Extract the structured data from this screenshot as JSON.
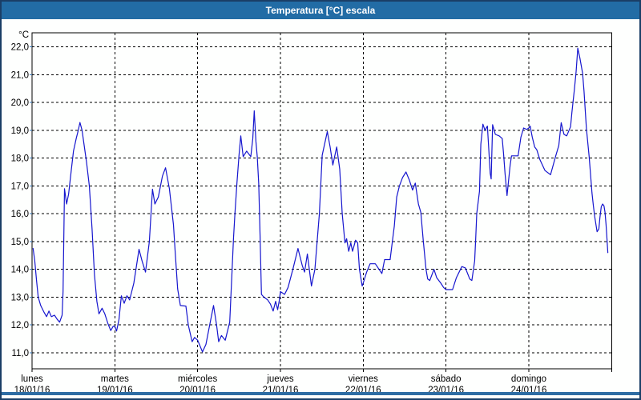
{
  "window": {
    "title": "Temperatura [°C] escala"
  },
  "colors": {
    "titlebar": "#226CA5",
    "frame": "#1A3E66",
    "bottom_strip": "#2E6DA4",
    "plot_background": "#FEFFFE",
    "grid": "#000000",
    "text": "#000000",
    "line": "#1616CE"
  },
  "chart_data": {
    "type": "line",
    "title": "Temperatura [°C] escala",
    "y_unit": "°C",
    "ylim": [
      10.4,
      22.5
    ],
    "grid": "dashed-black-both-axes",
    "legend": "none",
    "y_ticks": [
      {
        "value": 22,
        "label": "22,0"
      },
      {
        "value": 21,
        "label": "21,0"
      },
      {
        "value": 20,
        "label": "20,0"
      },
      {
        "value": 19,
        "label": "19,0"
      },
      {
        "value": 18,
        "label": "18,0"
      },
      {
        "value": 17,
        "label": "17,0"
      },
      {
        "value": 16,
        "label": "16,0"
      },
      {
        "value": 15,
        "label": "15,0"
      },
      {
        "value": 14,
        "label": "14,0"
      },
      {
        "value": 13,
        "label": "13,0"
      },
      {
        "value": 12,
        "label": "12,0"
      },
      {
        "value": 11,
        "label": "11,0"
      }
    ],
    "days": [
      {
        "name": "lunes",
        "date": "18/01/16"
      },
      {
        "name": "martes",
        "date": "19/01/16"
      },
      {
        "name": "miércoles",
        "date": "20/01/16"
      },
      {
        "name": "jueves",
        "date": "21/01/16"
      },
      {
        "name": "viernes",
        "date": "22/01/16"
      },
      {
        "name": "sábado",
        "date": "23/01/16"
      },
      {
        "name": "domingo",
        "date": "24/01/16"
      }
    ],
    "hours_per_day": 24,
    "x_range_hours": [
      0,
      168
    ],
    "series": [
      {
        "name": "Temperatura",
        "color": "#1616CE",
        "points": [
          [
            0.3,
            14.75
          ],
          [
            0.8,
            14.3
          ],
          [
            1.3,
            13.6
          ],
          [
            1.8,
            13.0
          ],
          [
            2.5,
            12.7
          ],
          [
            3.5,
            12.45
          ],
          [
            4.2,
            12.3
          ],
          [
            4.9,
            12.5
          ],
          [
            5.6,
            12.3
          ],
          [
            6.5,
            12.35
          ],
          [
            7.3,
            12.2
          ],
          [
            8.0,
            12.1
          ],
          [
            8.7,
            12.35
          ],
          [
            9.0,
            13.2
          ],
          [
            9.4,
            16.9
          ],
          [
            10.0,
            16.35
          ],
          [
            10.6,
            16.7
          ],
          [
            11.4,
            17.6
          ],
          [
            12.0,
            18.25
          ],
          [
            12.8,
            18.7
          ],
          [
            13.4,
            19.0
          ],
          [
            13.9,
            19.28
          ],
          [
            14.5,
            19.0
          ],
          [
            15.0,
            18.55
          ],
          [
            15.8,
            17.85
          ],
          [
            16.6,
            17.0
          ],
          [
            17.4,
            15.45
          ],
          [
            18.1,
            13.8
          ],
          [
            18.8,
            12.85
          ],
          [
            19.4,
            12.4
          ],
          [
            20.3,
            12.6
          ],
          [
            21.1,
            12.4
          ],
          [
            22.0,
            12.05
          ],
          [
            22.8,
            11.8
          ],
          [
            23.5,
            11.95
          ],
          [
            24.0,
            11.95
          ],
          [
            24.5,
            11.78
          ],
          [
            25.2,
            12.2
          ],
          [
            25.9,
            13.05
          ],
          [
            26.7,
            12.78
          ],
          [
            27.5,
            13.05
          ],
          [
            28.3,
            12.9
          ],
          [
            29.5,
            13.5
          ],
          [
            31.0,
            14.72
          ],
          [
            31.9,
            14.3
          ],
          [
            32.9,
            13.9
          ],
          [
            34.0,
            15.0
          ],
          [
            34.9,
            16.88
          ],
          [
            35.6,
            16.35
          ],
          [
            36.6,
            16.6
          ],
          [
            37.8,
            17.35
          ],
          [
            38.7,
            17.65
          ],
          [
            39.8,
            16.9
          ],
          [
            41.0,
            15.6
          ],
          [
            41.5,
            14.6
          ],
          [
            42.2,
            13.3
          ],
          [
            43.0,
            12.7
          ],
          [
            44.6,
            12.68
          ],
          [
            45.3,
            12.0
          ],
          [
            46.4,
            11.4
          ],
          [
            47.1,
            11.55
          ],
          [
            48.0,
            11.45
          ],
          [
            49.4,
            11.03
          ],
          [
            50.4,
            11.3
          ],
          [
            51.5,
            12.0
          ],
          [
            52.6,
            12.7
          ],
          [
            53.5,
            12.0
          ],
          [
            54.1,
            11.4
          ],
          [
            54.9,
            11.62
          ],
          [
            56.0,
            11.45
          ],
          [
            57.3,
            12.1
          ],
          [
            58.0,
            14.0
          ],
          [
            58.4,
            15.1
          ],
          [
            58.8,
            16.0
          ],
          [
            59.4,
            17.1
          ],
          [
            60.0,
            18.1
          ],
          [
            60.5,
            18.8
          ],
          [
            61.2,
            18.05
          ],
          [
            62.2,
            18.25
          ],
          [
            63.4,
            18.05
          ],
          [
            64.0,
            18.7
          ],
          [
            64.4,
            19.7
          ],
          [
            64.9,
            18.6
          ],
          [
            65.3,
            18.04
          ],
          [
            65.7,
            17.08
          ],
          [
            66.1,
            15.2
          ],
          [
            66.5,
            13.1
          ],
          [
            67.2,
            13.0
          ],
          [
            68.3,
            12.9
          ],
          [
            69.1,
            12.75
          ],
          [
            69.9,
            12.5
          ],
          [
            70.6,
            12.85
          ],
          [
            71.2,
            12.55
          ],
          [
            71.7,
            12.9
          ],
          [
            72.0,
            13.2
          ],
          [
            73.2,
            13.1
          ],
          [
            74.2,
            13.35
          ],
          [
            75.6,
            14.0
          ],
          [
            77.1,
            14.75
          ],
          [
            78.3,
            14.15
          ],
          [
            79.0,
            13.9
          ],
          [
            79.8,
            14.55
          ],
          [
            81.0,
            13.4
          ],
          [
            82.0,
            14.0
          ],
          [
            83.3,
            16.0
          ],
          [
            84.1,
            18.1
          ],
          [
            85.6,
            18.95
          ],
          [
            86.4,
            18.4
          ],
          [
            87.2,
            17.75
          ],
          [
            88.3,
            18.4
          ],
          [
            89.2,
            17.6
          ],
          [
            89.9,
            16.0
          ],
          [
            90.7,
            14.95
          ],
          [
            91.2,
            15.1
          ],
          [
            91.8,
            14.65
          ],
          [
            92.4,
            14.95
          ],
          [
            92.9,
            14.65
          ],
          [
            93.8,
            15.05
          ],
          [
            94.4,
            14.95
          ],
          [
            94.9,
            14.0
          ],
          [
            95.7,
            13.4
          ],
          [
            96.0,
            13.5
          ],
          [
            97.0,
            13.9
          ],
          [
            98.0,
            14.2
          ],
          [
            99.5,
            14.2
          ],
          [
            101.4,
            13.85
          ],
          [
            102.2,
            14.35
          ],
          [
            103.8,
            14.35
          ],
          [
            104.5,
            15.05
          ],
          [
            105.0,
            15.55
          ],
          [
            105.7,
            16.6
          ],
          [
            106.5,
            17.0
          ],
          [
            107.4,
            17.3
          ],
          [
            108.4,
            17.5
          ],
          [
            109.4,
            17.2
          ],
          [
            110.3,
            16.85
          ],
          [
            111.1,
            17.1
          ],
          [
            112.0,
            16.35
          ],
          [
            112.7,
            16.05
          ],
          [
            113.4,
            15.05
          ],
          [
            114.2,
            14.0
          ],
          [
            114.7,
            13.65
          ],
          [
            115.3,
            13.6
          ],
          [
            116.5,
            14.0
          ],
          [
            117.3,
            13.7
          ],
          [
            118.5,
            13.5
          ],
          [
            119.3,
            13.35
          ],
          [
            120.0,
            13.27
          ],
          [
            121.9,
            13.27
          ],
          [
            123.0,
            13.7
          ],
          [
            124.6,
            14.1
          ],
          [
            125.6,
            14.05
          ],
          [
            126.9,
            13.65
          ],
          [
            127.5,
            13.6
          ],
          [
            128.3,
            14.3
          ],
          [
            128.6,
            15.1
          ],
          [
            128.9,
            16.0
          ],
          [
            129.7,
            16.8
          ],
          [
            130.1,
            18.5
          ],
          [
            130.7,
            19.22
          ],
          [
            131.3,
            19.0
          ],
          [
            132.0,
            19.15
          ],
          [
            132.8,
            17.45
          ],
          [
            133.1,
            17.25
          ],
          [
            133.5,
            19.2
          ],
          [
            134.3,
            18.85
          ],
          [
            135.4,
            18.8
          ],
          [
            136.3,
            18.7
          ],
          [
            136.7,
            18.15
          ],
          [
            137.1,
            17.45
          ],
          [
            137.7,
            16.65
          ],
          [
            138.6,
            17.75
          ],
          [
            139.0,
            18.08
          ],
          [
            140.9,
            18.08
          ],
          [
            141.7,
            18.75
          ],
          [
            142.5,
            19.08
          ],
          [
            143.4,
            19.03
          ],
          [
            144.0,
            19.08
          ],
          [
            144.4,
            19.15
          ],
          [
            145.0,
            18.75
          ],
          [
            145.7,
            18.4
          ],
          [
            146.3,
            18.3
          ],
          [
            147.2,
            17.95
          ],
          [
            148.7,
            17.55
          ],
          [
            150.3,
            17.4
          ],
          [
            151.8,
            18.08
          ],
          [
            152.7,
            18.45
          ],
          [
            153.4,
            19.27
          ],
          [
            154.2,
            18.85
          ],
          [
            155.0,
            18.8
          ],
          [
            156.1,
            19.13
          ],
          [
            156.5,
            19.65
          ],
          [
            157.2,
            20.45
          ],
          [
            157.7,
            21.1
          ],
          [
            158.2,
            21.95
          ],
          [
            158.8,
            21.6
          ],
          [
            159.6,
            21.05
          ],
          [
            160.0,
            20.4
          ],
          [
            160.7,
            19.05
          ],
          [
            161.5,
            18.05
          ],
          [
            162.3,
            16.75
          ],
          [
            162.7,
            16.3
          ],
          [
            163.1,
            15.9
          ],
          [
            163.8,
            15.35
          ],
          [
            164.3,
            15.45
          ],
          [
            164.6,
            15.85
          ],
          [
            165.0,
            16.25
          ],
          [
            165.4,
            16.35
          ],
          [
            165.8,
            16.28
          ],
          [
            166.1,
            16.05
          ],
          [
            166.4,
            15.6
          ],
          [
            166.6,
            15.2
          ],
          [
            166.9,
            14.6
          ]
        ]
      }
    ]
  }
}
